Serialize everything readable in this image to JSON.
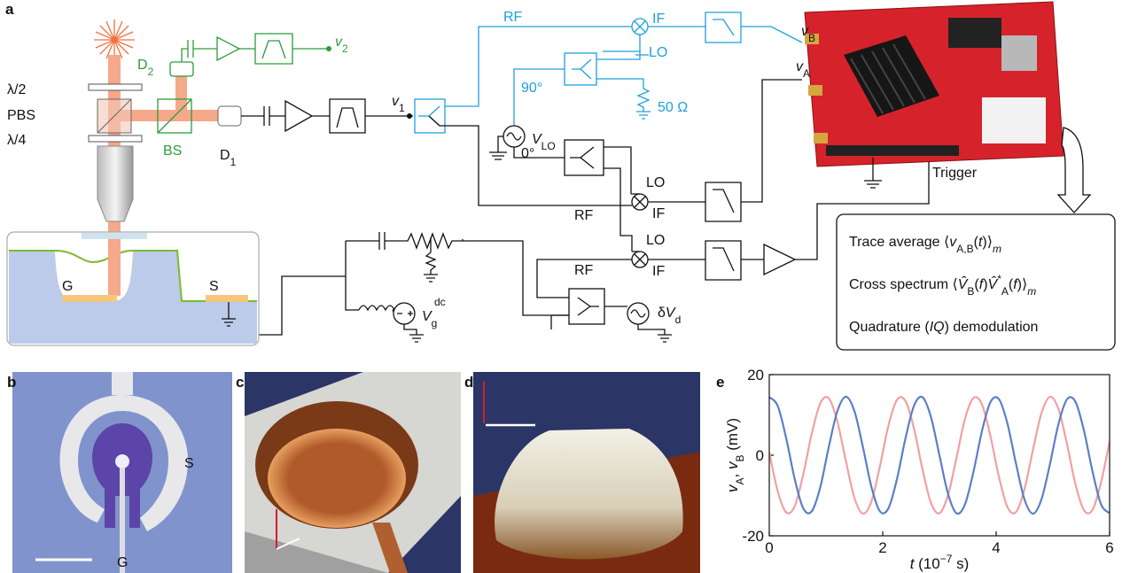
{
  "panels": {
    "a": {
      "label": "a",
      "optics": {
        "half_wave": "λ/2",
        "pbs": "PBS",
        "quarter_wave": "λ/4",
        "bs": "BS",
        "d1": [
          "D",
          "1"
        ],
        "d2": [
          "D",
          "2"
        ]
      },
      "signals": {
        "v1": [
          "v",
          "1"
        ],
        "v2": [
          "v",
          "2"
        ],
        "vA": [
          "v",
          "A"
        ],
        "vB": [
          "v",
          "B"
        ],
        "v_lo": [
          "V",
          "LO"
        ],
        "vg": [
          "V",
          "g",
          "dc"
        ],
        "dvd": [
          "δ",
          "V",
          "d"
        ]
      },
      "mixer_ports": [
        [
          "RF",
          "IF",
          "LO"
        ],
        [
          "LO",
          "RF",
          "IF"
        ],
        [
          "LO",
          "RF",
          "IF"
        ]
      ],
      "phases": [
        "90°",
        "0°"
      ],
      "load": "50 Ω",
      "trigger": "Trigger",
      "gate": "G",
      "source": "S",
      "box": {
        "lines": [
          [
            "Trace average ",
            "⟨",
            "v",
            "A,B",
            "(",
            "t",
            ")",
            "⟩",
            "m"
          ],
          [
            "Cross spectrum ",
            "⟨",
            "V̂",
            "B",
            "(",
            "f",
            ")",
            "V̂",
            "*",
            "A",
            "(",
            "f",
            ")",
            "⟩",
            "m"
          ],
          [
            "Quadrature (",
            "IQ",
            ") demodulation"
          ]
        ]
      }
    },
    "b": {
      "label": "b",
      "source": "S",
      "gate": "G"
    },
    "c": {
      "label": "c"
    },
    "d": {
      "label": "d"
    },
    "e": {
      "label": "e"
    }
  },
  "chart_data": {
    "type": "line",
    "x": [
      0,
      0.15,
      0.3,
      0.45,
      0.6,
      0.75,
      0.9,
      1.05,
      1.2,
      1.35,
      1.5,
      1.65,
      1.8,
      1.95,
      2.1,
      2.25,
      2.4,
      2.55,
      2.7,
      2.85,
      3,
      3.15,
      3.3,
      3.45,
      3.6,
      3.75,
      3.9,
      4.05,
      4.2,
      4.35,
      4.5,
      4.65,
      4.8,
      4.95,
      5.1,
      5.25,
      5.4,
      5.55,
      5.7,
      5.85,
      6
    ],
    "series": [
      {
        "color": "#f2a0a0",
        "values": [
          0.7,
          -9.0,
          -14.2,
          -12.6,
          -4.7,
          5.4,
          12.9,
          14.1,
          8.4,
          -1.4,
          -10.5,
          -14.5,
          -11.5,
          -2.8,
          7.3,
          13.7,
          13.5,
          6.7,
          -3.4,
          -11.8,
          -14.4,
          -10.0,
          -0.7,
          9.0,
          14.2,
          12.6,
          4.7,
          -5.4,
          -12.9,
          -14.1,
          -8.4,
          1.4,
          10.5,
          14.5,
          11.4,
          2.7,
          -7.3,
          -13.7,
          -13.5,
          -6.7,
          3.4
        ]
      },
      {
        "color": "#5b7fc4",
        "values": [
          14.4,
          12.2,
          4.1,
          -6.0,
          -13.2,
          -13.9,
          -7.9,
          2.1,
          10.9,
          14.5,
          11.0,
          2.1,
          -7.8,
          -13.9,
          -13.2,
          -6.0,
          4.1,
          12.2,
          14.4,
          9.5,
          0,
          -9.5,
          -14.4,
          -12.2,
          -4.1,
          6.0,
          13.2,
          13.9,
          7.8,
          -2.1,
          -11.0,
          -14.5,
          -10.9,
          -2.1,
          7.8,
          13.9,
          13.2,
          6.0,
          -4.1,
          -12.2,
          -14.4
        ]
      }
    ],
    "xlim": [
      0,
      6
    ],
    "ylim": [
      -20,
      20
    ],
    "xticks": [
      0,
      2,
      4,
      6
    ],
    "yticks": [
      -20,
      0,
      20
    ],
    "xlabel": [
      "t",
      " (10",
      "−7",
      " s)"
    ],
    "ylabel": [
      "v",
      "A",
      ", ",
      "v",
      "B",
      " (mV)"
    ]
  }
}
